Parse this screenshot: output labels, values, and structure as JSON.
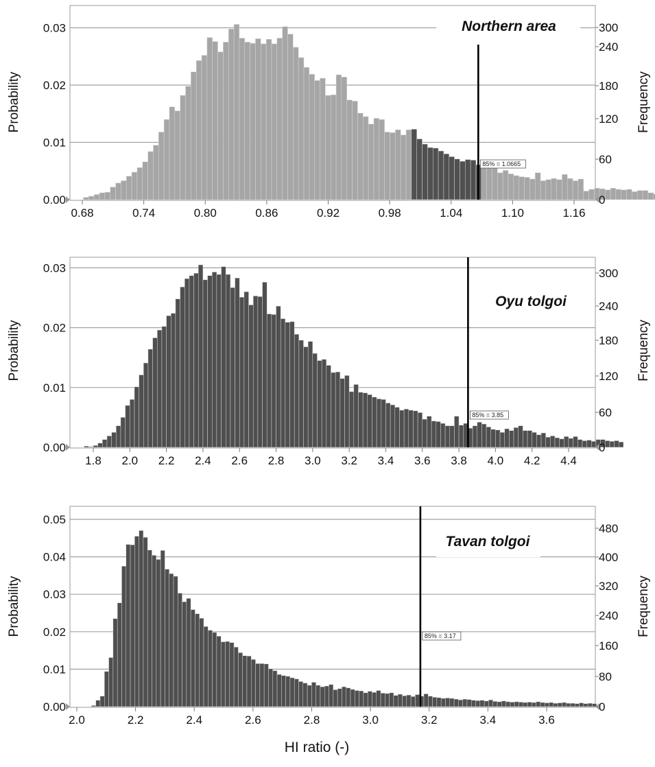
{
  "chart_data": [
    {
      "type": "bar",
      "title": "Northern area",
      "ylabel": "Probability",
      "ylabel_right": "Frequency",
      "ylim": [
        0,
        0.033
      ],
      "yticks": [
        "0.00",
        "0.01",
        "0.02",
        "0.03"
      ],
      "yticks_right": [
        "0",
        "60",
        "120",
        "180",
        "240",
        "300"
      ],
      "xticks": [
        "0.68",
        "0.74",
        "0.80",
        "0.86",
        "0.92",
        "0.98",
        "1.04",
        "1.10",
        "1.16"
      ],
      "percentile_label": "85% = 1.0665",
      "percentile_value": 1.0665,
      "grid": true,
      "bin_start": 0.681,
      "bin_width": 0.00525,
      "highlight_range": [
        0.997,
        1.0665
      ],
      "values": [
        0.0004,
        0.0006,
        0.0009,
        0.0012,
        0.0013,
        0.0022,
        0.0029,
        0.0033,
        0.0041,
        0.0048,
        0.0056,
        0.0066,
        0.0084,
        0.0095,
        0.0118,
        0.014,
        0.0162,
        0.0155,
        0.0182,
        0.0198,
        0.0223,
        0.0243,
        0.0252,
        0.0283,
        0.0276,
        0.0258,
        0.0275,
        0.0298,
        0.0306,
        0.0282,
        0.0275,
        0.0273,
        0.0281,
        0.0272,
        0.028,
        0.0272,
        0.0282,
        0.0302,
        0.0289,
        0.0266,
        0.0248,
        0.0231,
        0.0219,
        0.0208,
        0.0212,
        0.0182,
        0.0183,
        0.0218,
        0.0214,
        0.0174,
        0.0172,
        0.0151,
        0.0145,
        0.0132,
        0.0142,
        0.014,
        0.0118,
        0.0117,
        0.0122,
        0.0113,
        0.0122,
        0.0123,
        0.0106,
        0.0097,
        0.0091,
        0.009,
        0.0085,
        0.008,
        0.0075,
        0.0071,
        0.0067,
        0.007,
        0.0069,
        0.0061,
        0.0063,
        0.0058,
        0.006,
        0.0047,
        0.0051,
        0.0045,
        0.0042,
        0.004,
        0.0039,
        0.0036,
        0.0047,
        0.0033,
        0.0035,
        0.0037,
        0.0035,
        0.0044,
        0.0037,
        0.0033,
        0.0036,
        0.0015,
        0.0018,
        0.002,
        0.0019,
        0.0017,
        0.002,
        0.0018,
        0.0017,
        0.0018,
        0.0014,
        0.0016,
        0.0016,
        0.0012,
        0.001,
        0.0014,
        0.0009,
        0.0013,
        0.0006,
        0.001,
        0.0005
      ]
    },
    {
      "type": "bar",
      "title": "Oyu tolgoi",
      "ylabel": "Probability",
      "ylabel_right": "Frequency",
      "ylim": [
        0,
        0.0325
      ],
      "yticks": [
        "0.00",
        "0.01",
        "0.02",
        "0.03"
      ],
      "yticks_right": [
        "0",
        "60",
        "120",
        "180",
        "240",
        "300"
      ],
      "xticks": [
        "1.8",
        "2.0",
        "2.2",
        "2.4",
        "2.6",
        "2.8",
        "3.0",
        "3.2",
        "3.4",
        "3.6",
        "3.8",
        "4.0",
        "4.2",
        "4.4"
      ],
      "percentile_label": "85% = 3.85",
      "percentile_value": 3.85,
      "grid": true,
      "bin_start": 1.75,
      "bin_width": 0.025,
      "values": [
        0.0002,
        0.0001,
        0.0003,
        0.0007,
        0.0013,
        0.0019,
        0.0025,
        0.0036,
        0.005,
        0.007,
        0.008,
        0.0101,
        0.0121,
        0.0141,
        0.0164,
        0.0183,
        0.0196,
        0.0202,
        0.022,
        0.0224,
        0.0248,
        0.0268,
        0.0282,
        0.0287,
        0.0291,
        0.0305,
        0.028,
        0.0287,
        0.0293,
        0.0289,
        0.0302,
        0.0289,
        0.0267,
        0.0283,
        0.0251,
        0.026,
        0.0238,
        0.0253,
        0.0252,
        0.0276,
        0.0223,
        0.0222,
        0.0236,
        0.0215,
        0.0209,
        0.021,
        0.0189,
        0.0179,
        0.0168,
        0.0177,
        0.0157,
        0.0145,
        0.0147,
        0.0137,
        0.0125,
        0.0126,
        0.0115,
        0.012,
        0.0093,
        0.0105,
        0.0092,
        0.0091,
        0.0088,
        0.0084,
        0.0081,
        0.008,
        0.0074,
        0.0071,
        0.0067,
        0.0062,
        0.0064,
        0.0062,
        0.0061,
        0.0058,
        0.0047,
        0.0052,
        0.0044,
        0.0043,
        0.004,
        0.0036,
        0.0036,
        0.0052,
        0.0037,
        0.004,
        0.0032,
        0.0036,
        0.0042,
        0.0039,
        0.0034,
        0.003,
        0.0029,
        0.0025,
        0.0031,
        0.0028,
        0.0033,
        0.0036,
        0.0028,
        0.0028,
        0.0025,
        0.0021,
        0.0024,
        0.0017,
        0.0019,
        0.0016,
        0.0014,
        0.0018,
        0.0015,
        0.0018,
        0.0013,
        0.0011,
        0.0012,
        0.001,
        0.0013,
        0.0013,
        0.0011,
        0.001,
        0.0011,
        0.0009
      ]
    },
    {
      "type": "bar",
      "title": "Tavan tolgoi",
      "ylabel": "Probability",
      "ylabel_right": "Frequency",
      "xlabel": "HI ratio (-)",
      "ylim": [
        0,
        0.05
      ],
      "yticks": [
        "0.00",
        "0.01",
        "0.02",
        "0.03",
        "0.04",
        "0.05"
      ],
      "yticks_right": [
        "0",
        "80",
        "160",
        "240",
        "320",
        "400",
        "480"
      ],
      "xticks": [
        "2.0",
        "2.2",
        "2.4",
        "2.6",
        "2.8",
        "3.0",
        "3.2",
        "3.4",
        "3.6"
      ],
      "percentile_label": "85% = 3.17",
      "percentile_value": 3.17,
      "grid": true,
      "bin_start": 2.05,
      "bin_width": 0.0147,
      "values": [
        0.0003,
        0.0017,
        0.0028,
        0.0094,
        0.0131,
        0.0235,
        0.0277,
        0.0375,
        0.0433,
        0.0432,
        0.0455,
        0.047,
        0.0452,
        0.0418,
        0.0404,
        0.0393,
        0.0417,
        0.0367,
        0.0355,
        0.0348,
        0.0303,
        0.028,
        0.0289,
        0.0259,
        0.0248,
        0.0236,
        0.0214,
        0.0204,
        0.0198,
        0.0188,
        0.0173,
        0.0174,
        0.0171,
        0.0159,
        0.0144,
        0.0136,
        0.0135,
        0.0126,
        0.0115,
        0.0115,
        0.0114,
        0.0101,
        0.0096,
        0.0086,
        0.0083,
        0.0081,
        0.0077,
        0.0074,
        0.0067,
        0.0063,
        0.0057,
        0.0065,
        0.0057,
        0.0053,
        0.0055,
        0.0059,
        0.0045,
        0.0048,
        0.0053,
        0.005,
        0.0046,
        0.0043,
        0.0042,
        0.0037,
        0.0041,
        0.0038,
        0.0043,
        0.0036,
        0.0035,
        0.0037,
        0.003,
        0.0033,
        0.0029,
        0.0031,
        0.0027,
        0.0032,
        0.0028,
        0.0034,
        0.0028,
        0.0025,
        0.0024,
        0.0022,
        0.0023,
        0.0022,
        0.002,
        0.0018,
        0.002,
        0.0019,
        0.0017,
        0.0016,
        0.0017,
        0.0015,
        0.0018,
        0.0014,
        0.0013,
        0.0015,
        0.0013,
        0.0012,
        0.0013,
        0.0012,
        0.0011,
        0.0012,
        0.0011,
        0.0013,
        0.0011,
        0.001,
        0.0011,
        0.0009,
        0.001,
        0.0011,
        0.0009,
        0.0009,
        0.0008,
        0.001,
        0.0008,
        0.0009,
        0.0008
      ]
    }
  ]
}
